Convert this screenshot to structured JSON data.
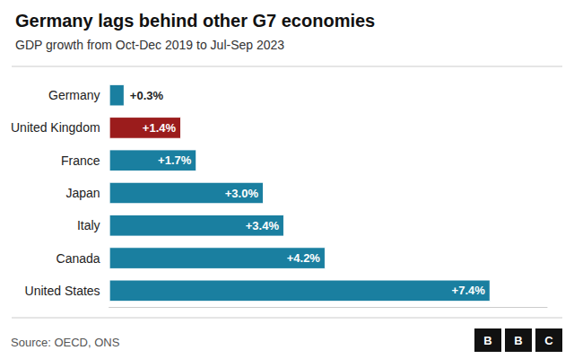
{
  "chart_data": {
    "type": "bar",
    "orientation": "horizontal",
    "title": "Germany lags behind other G7 economies",
    "subtitle": "GDP growth from Oct-Dec 2019 to Jul-Sep 2023",
    "source": "Source: OECD, ONS",
    "annotations": [
      "B",
      "B",
      "C"
    ],
    "categories": [
      "Germany",
      "United Kingdom",
      "France",
      "Japan",
      "Italy",
      "Canada",
      "United States"
    ],
    "values": [
      0.3,
      1.4,
      1.7,
      3.0,
      3.4,
      4.2,
      7.4
    ],
    "value_labels": [
      "+0.3%",
      "+1.4%",
      "+1.7%",
      "+3.0%",
      "+3.4%",
      "+4.2%",
      "+7.4%"
    ],
    "colors": [
      "#1a7fa0",
      "#9b1c1c",
      "#1a7fa0",
      "#1a7fa0",
      "#1a7fa0",
      "#1a7fa0",
      "#1a7fa0"
    ],
    "data_labels": true,
    "xlim": [
      0,
      8.5
    ],
    "grid": false,
    "tick_labels": "y"
  }
}
